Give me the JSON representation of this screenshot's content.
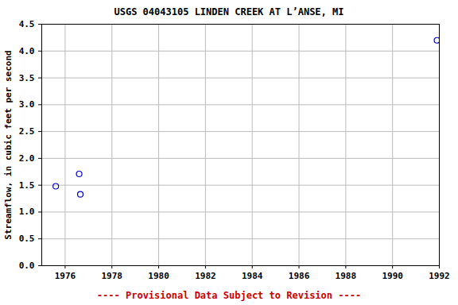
{
  "chart_data": {
    "type": "scatter",
    "title": "USGS 04043105 LINDEN CREEK AT L’ANSE, MI",
    "y_label": "Streamflow, in cubic feet per second",
    "caption": "---- Provisional Data Subject to Revision ----",
    "x": [
      1975.6,
      1976.6,
      1976.65,
      1991.9
    ],
    "values": [
      1.48,
      1.71,
      1.33,
      4.2
    ],
    "color": "#0000cc",
    "marker": "circle",
    "xlim": [
      1975,
      1992
    ],
    "xticks": [
      1976,
      1978,
      1980,
      1982,
      1984,
      1986,
      1988,
      1990,
      1992
    ],
    "ylim": [
      0,
      4.5
    ],
    "yticks": [
      {
        "value": 0,
        "label": "0.0"
      },
      0.5,
      {
        "value": 1,
        "label": "1.0"
      },
      1.5,
      {
        "value": 2,
        "label": "2.0"
      },
      2.5,
      {
        "value": 3,
        "label": "3.0"
      },
      3.5,
      {
        "value": 4,
        "label": "4.0"
      },
      4.5
    ],
    "grid": true
  }
}
